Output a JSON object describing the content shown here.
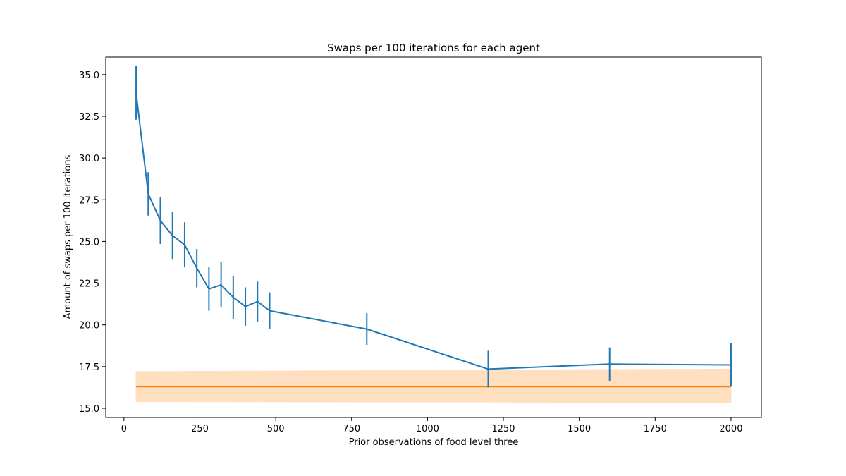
{
  "chart_data": {
    "type": "line",
    "title": "Swaps per 100 iterations for each agent",
    "xlabel": "Prior observations of food level three",
    "ylabel": "Amount of swaps per 100 iterations",
    "xlim": [
      -60,
      2100
    ],
    "ylim": [
      14.45,
      36.05
    ],
    "xticks": [
      0,
      250,
      500,
      750,
      1000,
      1250,
      1500,
      1750,
      2000
    ],
    "xtick_labels": [
      "0",
      "250",
      "500",
      "750",
      "1000",
      "1250",
      "1500",
      "1750",
      "2000"
    ],
    "yticks": [
      15.0,
      17.5,
      20.0,
      22.5,
      25.0,
      27.5,
      30.0,
      32.5,
      35.0
    ],
    "ytick_labels": [
      "15.0",
      "17.5",
      "20.0",
      "22.5",
      "25.0",
      "27.5",
      "30.0",
      "32.5",
      "35.0"
    ],
    "grid": false,
    "series": [
      {
        "kind": "errorbar-line",
        "color": "#1f77b4",
        "x": [
          40,
          80,
          120,
          160,
          200,
          240,
          280,
          320,
          360,
          400,
          440,
          480,
          800,
          1200,
          1600,
          2000
        ],
        "y": [
          33.9,
          27.85,
          26.25,
          25.35,
          24.8,
          23.4,
          22.15,
          22.4,
          21.65,
          21.1,
          21.4,
          20.85,
          19.75,
          17.35,
          17.65,
          17.6
        ],
        "yerr": [
          1.6,
          1.3,
          1.4,
          1.4,
          1.35,
          1.15,
          1.3,
          1.35,
          1.3,
          1.15,
          1.2,
          1.1,
          0.95,
          1.1,
          1.0,
          1.3
        ]
      },
      {
        "kind": "band-line",
        "color": "#ff7f0e",
        "band_color": "#ffdfc0",
        "x": [
          40,
          2000
        ],
        "y": [
          16.3,
          16.3
        ],
        "lower": [
          15.4,
          15.35
        ],
        "upper": [
          17.2,
          17.35
        ]
      }
    ]
  }
}
